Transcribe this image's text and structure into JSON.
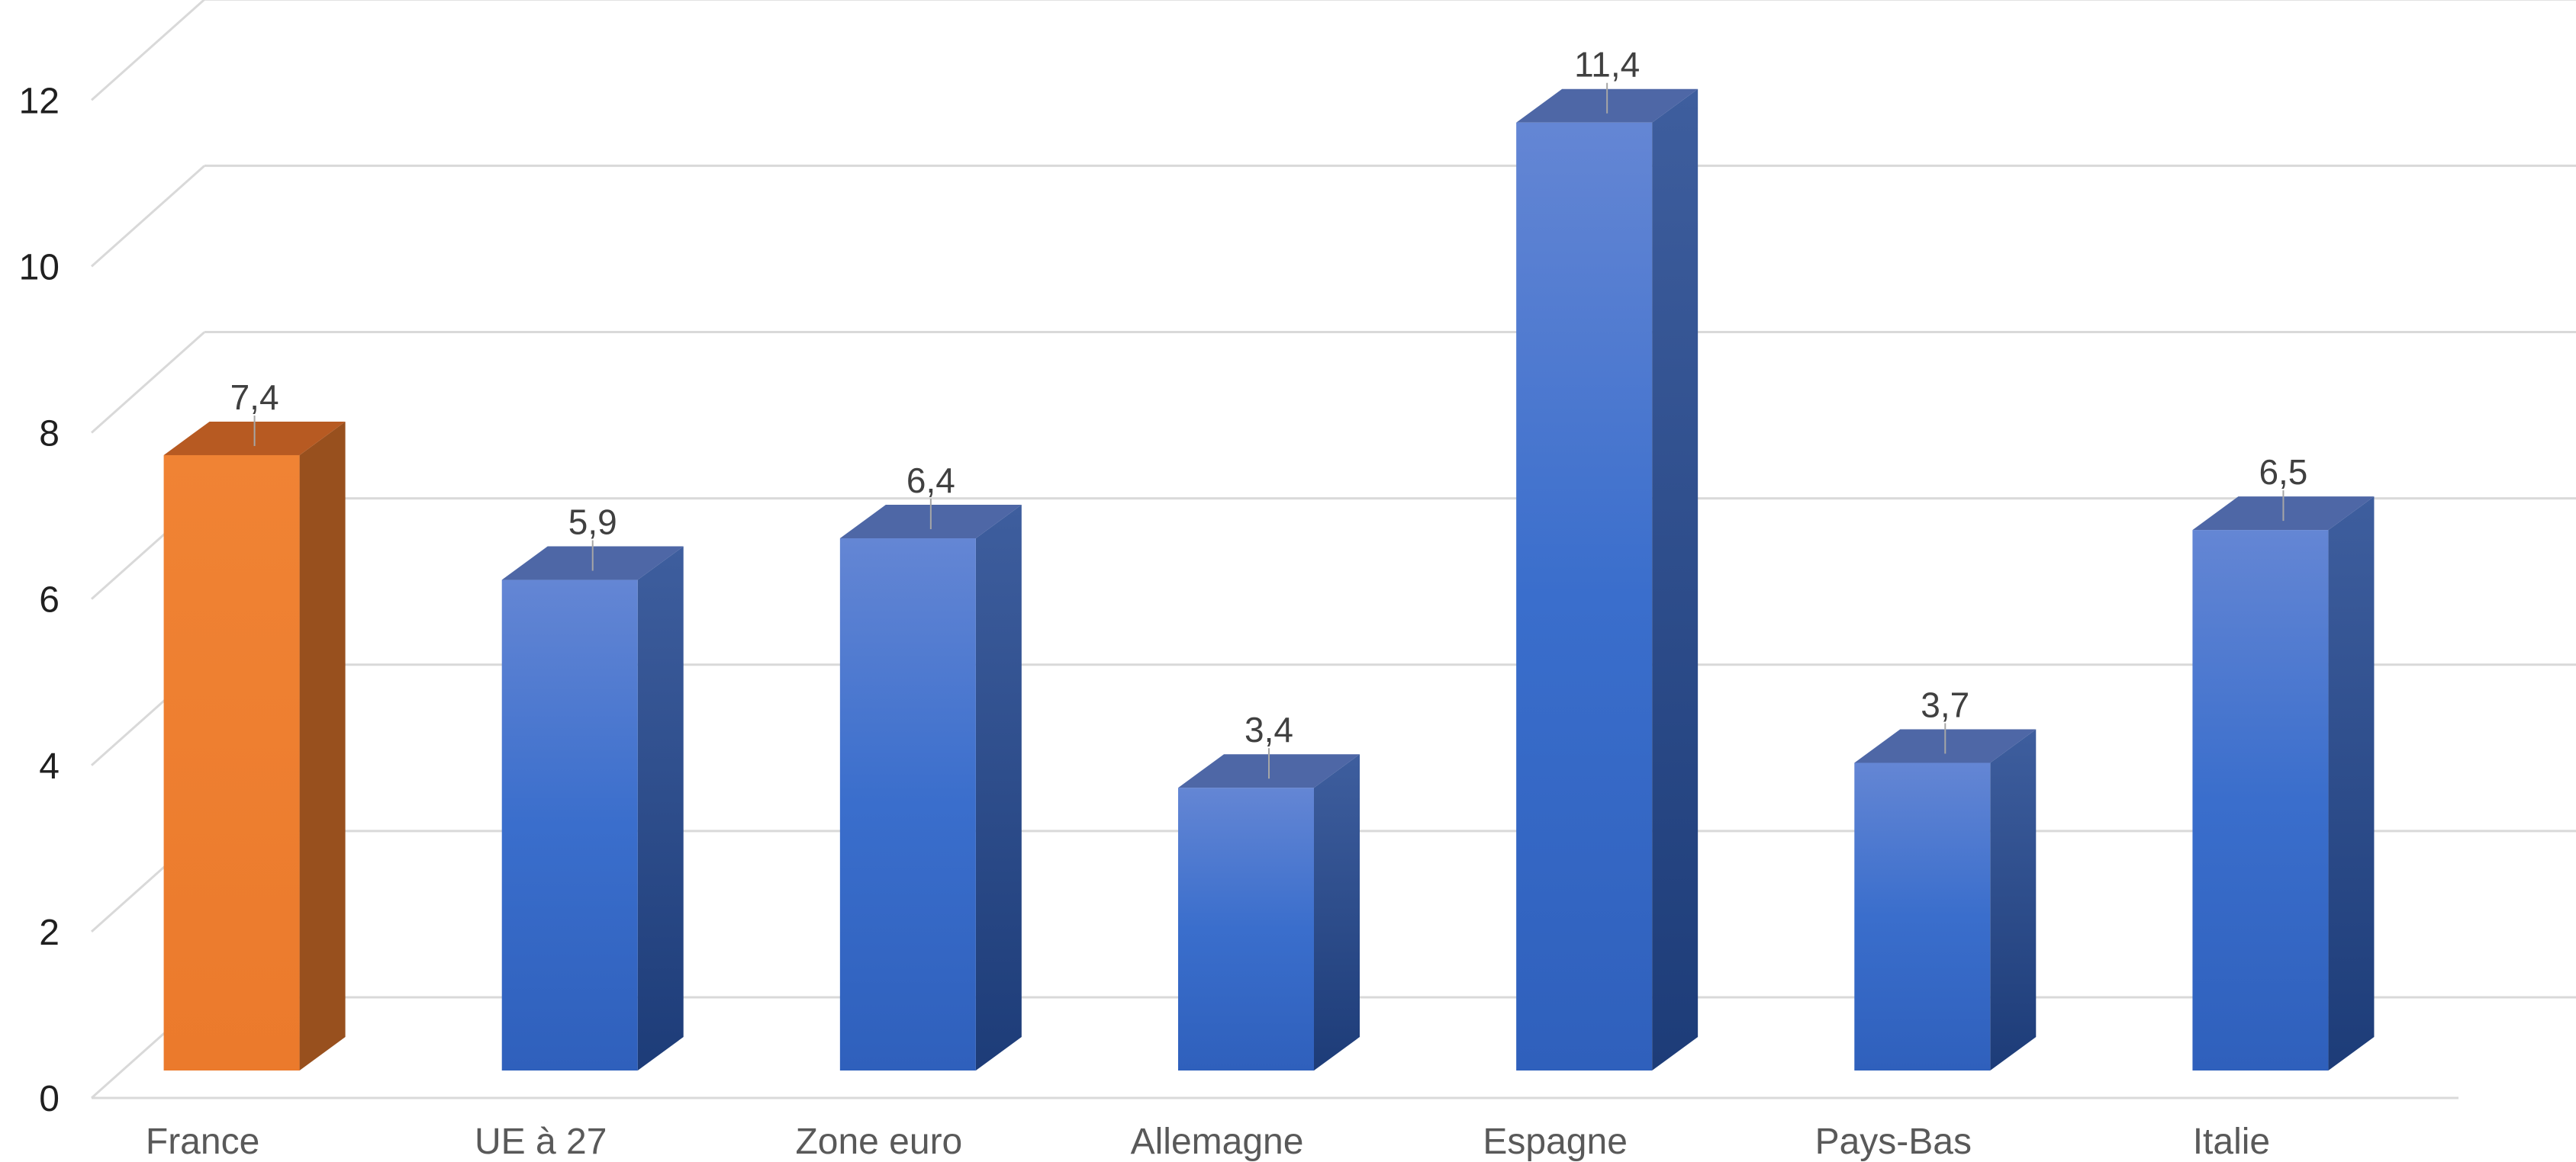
{
  "chart_data": {
    "type": "bar",
    "style": "3d-column",
    "categories": [
      "France",
      "UE à 27",
      "Zone euro",
      "Allemagne",
      "Espagne",
      "Pays-Bas",
      "Italie"
    ],
    "values": [
      7.4,
      5.9,
      6.4,
      3.4,
      11.4,
      3.7,
      6.5
    ],
    "value_labels": [
      "7,4",
      "5,9",
      "6,4",
      "3,4",
      "11,4",
      "3,7",
      "6,5"
    ],
    "y_ticks": [
      "0",
      "2",
      "4",
      "6",
      "8",
      "10",
      "12"
    ],
    "ylim": [
      0,
      12.8
    ],
    "grid": true,
    "legend": "none",
    "colors": {
      "highlight_front_top": "#F08334",
      "highlight_front_bottom": "#EB7A2C",
      "highlight_side": "#98501E",
      "highlight_top": "#B75A22",
      "series_front_top": "#6486D4",
      "series_front_mid": "#3A6ECC",
      "series_front_bottom": "#2F60BC",
      "series_side_top": "#3E5E9E",
      "series_side_bottom": "#1D3C78",
      "series_top": "#4E67A6",
      "gridline": "#D9D9D9",
      "axis": "#D9D9D9",
      "leader": "#A6A6A6"
    },
    "highlight_category": "France"
  }
}
